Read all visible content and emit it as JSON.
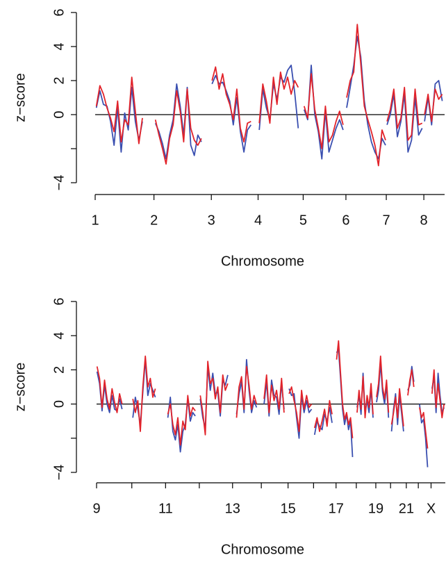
{
  "chart_data": [
    {
      "type": "line",
      "xlabel": "Chromosome",
      "ylabel": "z−score",
      "xlim": [
        0,
        1480
      ],
      "ylim": [
        -4,
        6
      ],
      "yticks": [
        {
          "value": -4,
          "label": "−4"
        },
        {
          "value": -2,
          "label": null
        },
        0,
        2,
        4,
        6
      ],
      "xticks": [
        {
          "value": 0,
          "label": "1"
        },
        {
          "value": 249,
          "label": "2"
        },
        {
          "value": 492,
          "label": "3"
        },
        {
          "value": 690,
          "label": "4"
        },
        {
          "value": 881,
          "label": "5"
        },
        {
          "value": 1062,
          "label": "6"
        },
        {
          "value": 1233,
          "label": "7"
        },
        {
          "value": 1392,
          "label": "8"
        }
      ],
      "x": [
        5,
        20,
        35,
        50,
        65,
        80,
        95,
        110,
        125,
        140,
        155,
        170,
        185,
        200,
        220,
        255,
        270,
        285,
        300,
        315,
        330,
        345,
        360,
        375,
        390,
        405,
        420,
        435,
        450,
        470,
        495,
        510,
        525,
        540,
        555,
        570,
        585,
        600,
        615,
        630,
        645,
        660,
        680,
        695,
        710,
        725,
        740,
        755,
        770,
        785,
        800,
        815,
        830,
        845,
        860,
        875,
        885,
        900,
        915,
        930,
        945,
        960,
        975,
        990,
        1005,
        1020,
        1035,
        1050,
        1058,
        1065,
        1080,
        1095,
        1110,
        1125,
        1140,
        1155,
        1170,
        1185,
        1200,
        1215,
        1230,
        1232,
        1236,
        1250,
        1265,
        1280,
        1295,
        1310,
        1325,
        1340,
        1355,
        1370,
        1385,
        1390,
        1395,
        1410,
        1425,
        1440,
        1455,
        1470
      ],
      "series": [
        {
          "color": "#3a4fb0",
          "values": [
            0.4,
            1.4,
            0.6,
            0.5,
            -0.4,
            -1.8,
            0.4,
            -2.2,
            0.1,
            -0.9,
            1.6,
            -0.4,
            -1.5,
            -0.4,
            null,
            -0.5,
            -1.0,
            -1.7,
            -2.6,
            -1.2,
            -0.3,
            1.8,
            0.5,
            -1.2,
            1.6,
            -1.8,
            -2.4,
            -1.2,
            -1.6,
            null,
            1.8,
            2.3,
            1.8,
            1.9,
            1.4,
            0.8,
            -0.6,
            1.0,
            -1.0,
            -2.2,
            -0.9,
            -0.6,
            null,
            -0.9,
            1.5,
            0.4,
            -0.3,
            1.8,
            0.9,
            2.2,
            1.9,
            2.6,
            2.9,
            1.3,
            -0.8,
            null,
            0.3,
            -0.3,
            2.9,
            0.0,
            -1.0,
            -2.6,
            0.2,
            -2.2,
            -1.5,
            -0.8,
            -0.3,
            -0.9,
            null,
            0.4,
            1.6,
            2.9,
            4.6,
            3.4,
            0.8,
            -0.6,
            -1.6,
            -2.2,
            -2.6,
            -1.4,
            -1.8,
            null,
            -0.6,
            0.0,
            1.2,
            -1.3,
            -0.4,
            1.2,
            -2.2,
            -1.5,
            1.0,
            -1.2,
            -0.8,
            null,
            -0.4,
            1.0,
            -0.6,
            1.8,
            2.0,
            0.8
          ]
        },
        {
          "color": "#e2232a",
          "values": [
            0.5,
            1.7,
            1.2,
            0.4,
            -0.2,
            -1.0,
            0.8,
            -1.6,
            -0.3,
            -0.6,
            2.2,
            0.2,
            -1.7,
            -0.2,
            null,
            -0.3,
            -1.2,
            -2.0,
            -2.9,
            -1.4,
            -0.6,
            1.4,
            0.2,
            -1.6,
            1.5,
            -0.8,
            -1.5,
            -1.8,
            -1.4,
            null,
            2.0,
            2.8,
            1.5,
            2.4,
            1.2,
            0.6,
            -0.3,
            1.5,
            -0.8,
            -1.6,
            -0.5,
            -0.4,
            null,
            -0.5,
            1.8,
            0.8,
            -0.5,
            2.2,
            0.6,
            2.5,
            1.5,
            2.2,
            1.2,
            2.0,
            1.6,
            null,
            0.5,
            -0.2,
            2.4,
            0.3,
            -0.8,
            -2.0,
            0.5,
            -1.6,
            -1.2,
            -0.4,
            0.2,
            -0.6,
            null,
            1.0,
            2.0,
            2.5,
            5.3,
            3.0,
            0.5,
            -0.3,
            -1.0,
            -1.8,
            -3.0,
            -0.9,
            -1.5,
            null,
            -0.4,
            0.3,
            1.5,
            -0.8,
            -0.2,
            1.6,
            -1.5,
            -1.2,
            1.5,
            -0.6,
            -0.5,
            null,
            0.0,
            1.2,
            -0.4,
            1.5,
            0.9,
            1.2
          ]
        }
      ]
    },
    {
      "type": "line",
      "xlabel": "Chromosome",
      "ylabel": "z−score",
      "xlim": [
        0,
        1395
      ],
      "ylim": [
        -4,
        6
      ],
      "yticks": [
        {
          "value": -4,
          "label": "−4"
        },
        {
          "value": -2,
          "label": null
        },
        0,
        2,
        4,
        6
      ],
      "xticks": [
        {
          "value": 0,
          "label": "9"
        },
        {
          "value": 141,
          "label": null
        },
        {
          "value": 276,
          "label": "11"
        },
        {
          "value": 411,
          "label": null
        },
        {
          "value": 544,
          "label": "13"
        },
        {
          "value": 659,
          "label": null
        },
        {
          "value": 766,
          "label": "15"
        },
        {
          "value": 868,
          "label": null
        },
        {
          "value": 958,
          "label": "17"
        },
        {
          "value": 1039,
          "label": null
        },
        {
          "value": 1117,
          "label": "19"
        },
        {
          "value": 1176,
          "label": null
        },
        {
          "value": 1239,
          "label": "21"
        },
        {
          "value": 1287,
          "label": null
        },
        {
          "value": 1338,
          "label": "X"
        }
      ],
      "x": [
        2,
        12,
        22,
        32,
        42,
        52,
        62,
        72,
        82,
        92,
        102,
        125,
        145,
        155,
        165,
        175,
        185,
        195,
        205,
        215,
        225,
        235,
        260,
        285,
        295,
        305,
        315,
        325,
        335,
        345,
        355,
        365,
        375,
        385,
        395,
        405,
        415,
        425,
        435,
        445,
        455,
        465,
        475,
        485,
        495,
        505,
        515,
        525,
        540,
        560,
        570,
        580,
        590,
        600,
        610,
        620,
        630,
        640,
        650,
        670,
        680,
        690,
        700,
        710,
        720,
        730,
        740,
        750,
        760,
        770,
        780,
        790,
        800,
        810,
        820,
        830,
        840,
        850,
        860,
        865,
        872,
        882,
        892,
        902,
        912,
        922,
        932,
        942,
        952,
        960,
        968,
        976,
        984,
        992,
        1000,
        1008,
        1016,
        1024,
        1032,
        1042,
        1050,
        1058,
        1066,
        1074,
        1082,
        1090,
        1098,
        1106,
        1112,
        1120,
        1128,
        1136,
        1144,
        1152,
        1160,
        1168,
        1173,
        1180,
        1188,
        1196,
        1204,
        1212,
        1220,
        1228,
        1235,
        1245,
        1253,
        1261,
        1269,
        1280,
        1292,
        1300,
        1308,
        1316,
        1324,
        1332,
        1342,
        1350,
        1358,
        1366,
        1374,
        1382,
        1390
      ],
      "series": [
        {
          "color": "#3a4fb0",
          "values": [
            1.9,
            1.2,
            -0.4,
            1.1,
            0.0,
            -0.5,
            0.5,
            -0.3,
            -0.4,
            0.3,
            -0.3,
            null,
            -0.8,
            0.4,
            -0.3,
            -1.2,
            0.7,
            2.6,
            0.5,
            1.2,
            0.8,
            0.4,
            null,
            -0.8,
            0.4,
            -1.6,
            -2.1,
            -1.2,
            -2.8,
            -1.6,
            -1.2,
            0.3,
            -1.0,
            -0.5,
            -0.7,
            null,
            0.3,
            -0.8,
            -1.4,
            2.2,
            0.8,
            1.8,
            0.6,
            0.7,
            -0.7,
            1.4,
            1.1,
            1.7,
            null,
            -0.6,
            0.6,
            1.3,
            -0.5,
            2.6,
            0.8,
            -0.5,
            0.2,
            -0.2,
            null,
            0.0,
            1.3,
            -0.7,
            1.4,
            0.5,
            0.4,
            -0.6,
            1.2,
            -0.3,
            null,
            0.9,
            0.5,
            0.6,
            -0.8,
            -2.0,
            0.5,
            -0.5,
            0.2,
            -0.5,
            -0.3,
            null,
            -1.8,
            -1.0,
            -1.3,
            -1.5,
            -0.6,
            -1.0,
            -0.2,
            -1.1,
            null,
            3.0,
            3.2,
            1.5,
            -0.3,
            -1.2,
            -0.6,
            -1.5,
            -1.0,
            -3.1,
            null,
            -0.2,
            0.5,
            -0.6,
            1.8,
            -0.5,
            0.2,
            -0.5,
            0.9,
            -0.8,
            null,
            0.1,
            0.8,
            2.4,
            0.7,
            0.0,
            1.1,
            -0.8,
            null,
            -1.6,
            -0.3,
            0.6,
            -1.2,
            0.5,
            -0.5,
            -1.6,
            null,
            0.8,
            1.1,
            2.2,
            1.3,
            null,
            0.0,
            -1.1,
            -0.9,
            -2.0,
            -3.7,
            null,
            0.9,
            1.6,
            -0.5,
            1.8,
            0.5,
            -0.5,
            -0.2
          ]
        },
        {
          "color": "#e2232a",
          "values": [
            2.2,
            1.5,
            -0.2,
            1.4,
            0.3,
            -0.3,
            0.9,
            0.1,
            -0.5,
            0.6,
            0.0,
            null,
            0.3,
            -0.5,
            0.2,
            -1.6,
            1.0,
            2.8,
            1.0,
            1.5,
            0.4,
            0.9,
            null,
            -0.6,
            0.0,
            -1.2,
            -1.8,
            -0.8,
            -2.4,
            -1.0,
            -1.5,
            0.5,
            -0.7,
            -0.2,
            -0.4,
            null,
            0.5,
            -0.5,
            -1.8,
            2.5,
            1.2,
            1.5,
            0.3,
            1.0,
            -0.5,
            1.7,
            0.8,
            1.2,
            null,
            -0.8,
            1.0,
            1.6,
            -0.3,
            2.2,
            1.1,
            -0.3,
            0.5,
            0.0,
            null,
            0.3,
            1.7,
            -0.5,
            1.1,
            0.2,
            0.8,
            -0.3,
            1.5,
            -0.5,
            null,
            0.6,
            1.0,
            0.2,
            -0.5,
            -1.6,
            0.8,
            -0.3,
            0.5,
            -0.2,
            0.0,
            null,
            -1.4,
            -0.8,
            -1.6,
            -1.0,
            -0.3,
            -1.3,
            0.2,
            -0.6,
            null,
            2.6,
            3.7,
            1.8,
            0.0,
            -0.9,
            -0.5,
            -1.2,
            -0.8,
            -2.0,
            null,
            -0.5,
            0.8,
            -0.3,
            1.6,
            -0.8,
            0.5,
            -0.2,
            1.2,
            -0.6,
            null,
            0.4,
            1.2,
            2.8,
            1.0,
            0.3,
            1.4,
            -0.5,
            null,
            -1.2,
            -0.5,
            0.4,
            -0.8,
            0.9,
            -0.2,
            -1.3,
            null,
            0.5,
            1.4,
            2.0,
            1.0,
            null,
            -0.2,
            -0.8,
            -0.5,
            -1.6,
            -2.6,
            null,
            0.6,
            2.0,
            -0.2,
            1.2,
            0.2,
            -0.8,
            0.0
          ]
        }
      ]
    }
  ]
}
